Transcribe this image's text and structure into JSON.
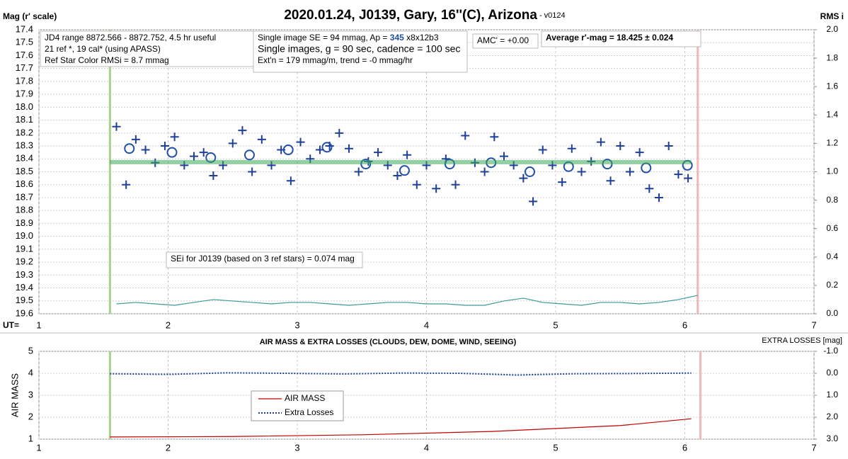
{
  "chart_data": [
    {
      "type": "scatter",
      "title": "2020.01.24, J0139, Gary, 16''(C), Arizona",
      "subtitle": " - v0124",
      "ylabel": "Mag (r' scale)",
      "y2label": "RMS i",
      "xlabel": "UT=",
      "xlim": [
        1,
        7
      ],
      "xticks": [
        1,
        2,
        3,
        4,
        5,
        6,
        7
      ],
      "ylim": [
        19.6,
        17.4
      ],
      "yticks": [
        17.4,
        17.5,
        17.6,
        17.7,
        17.8,
        17.9,
        {
          "value": 18,
          "label": "18.0"
        },
        18.1,
        18.2,
        18.3,
        18.4,
        18.5,
        18.6,
        18.7,
        18.8,
        18.9,
        {
          "value": 19,
          "label": "19.0"
        },
        19.1,
        19.2,
        19.3,
        19.4,
        19.5,
        19.6
      ],
      "y2lim": [
        0,
        2
      ],
      "y2ticks": [
        {
          "value": 0,
          "label": "0.0"
        },
        0.2,
        0.4,
        0.6,
        0.8,
        {
          "value": 1,
          "label": "1.0"
        },
        1.2,
        1.4,
        1.6,
        1.8,
        {
          "value": 2,
          "label": "2.0"
        }
      ],
      "grid": true,
      "vlines": [
        {
          "x": 1.55,
          "color": "#a9d18e"
        },
        {
          "x": 6.1,
          "color": "#f4b6b6"
        }
      ],
      "series": [
        {
          "marker": "plus",
          "color": "#1f3f99",
          "x": [
            1.6,
            1.675,
            1.75,
            1.825,
            1.9,
            1.975,
            2.05,
            2.125,
            2.2,
            2.275,
            2.35,
            2.425,
            2.5,
            2.575,
            2.65,
            2.725,
            2.8,
            2.875,
            2.95,
            3.025,
            3.1,
            3.175,
            3.25,
            3.325,
            3.4,
            3.475,
            3.55,
            3.625,
            3.7,
            3.775,
            3.85,
            3.925,
            4.0,
            4.075,
            4.15,
            4.225,
            4.3,
            4.375,
            4.45,
            4.525,
            4.6,
            4.675,
            4.75,
            4.825,
            4.9,
            4.975,
            5.05,
            5.125,
            5.2,
            5.275,
            5.35,
            5.425,
            5.5,
            5.575,
            5.65,
            5.725,
            5.8,
            5.875,
            5.95,
            6.025
          ],
          "values": [
            18.15,
            18.6,
            18.25,
            18.33,
            18.43,
            18.3,
            18.23,
            18.45,
            18.38,
            18.35,
            18.53,
            18.45,
            18.28,
            18.18,
            18.5,
            18.25,
            18.45,
            18.33,
            18.57,
            18.27,
            18.4,
            18.33,
            18.3,
            18.2,
            18.32,
            18.5,
            18.42,
            18.35,
            18.45,
            18.53,
            18.37,
            18.6,
            18.45,
            18.63,
            18.4,
            18.6,
            18.22,
            18.43,
            18.5,
            18.23,
            18.38,
            18.45,
            18.55,
            18.73,
            18.33,
            18.45,
            18.58,
            18.32,
            18.5,
            18.42,
            18.27,
            18.57,
            18.3,
            18.5,
            18.35,
            18.63,
            18.7,
            18.3,
            18.52,
            18.55
          ]
        },
        {
          "marker": "circle",
          "color": "#1f4fa8",
          "x": [
            1.7,
            2.03,
            2.33,
            2.63,
            2.93,
            3.23,
            3.53,
            3.83,
            4.18,
            4.5,
            4.8,
            5.1,
            5.4,
            5.7,
            6.02
          ],
          "values": [
            18.32,
            18.35,
            18.39,
            18.37,
            18.33,
            18.31,
            18.44,
            18.49,
            18.44,
            18.43,
            18.5,
            18.46,
            18.44,
            18.47,
            18.45
          ]
        },
        {
          "marker": "band",
          "color": "#3aa856",
          "x": [
            1.55,
            6.05
          ],
          "values": [
            18.425,
            18.425
          ]
        },
        {
          "marker": "plusline",
          "color": "#3d9a9a",
          "axis": "y2",
          "x": [
            1.6,
            1.75,
            1.9,
            2.05,
            2.2,
            2.35,
            2.5,
            2.65,
            2.8,
            2.95,
            3.1,
            3.25,
            3.4,
            3.55,
            3.7,
            3.85,
            4.0,
            4.15,
            4.3,
            4.45,
            4.6,
            4.75,
            4.9,
            5.05,
            5.2,
            5.35,
            5.5,
            5.65,
            5.8,
            5.95,
            6.1
          ],
          "values": [
            0.07,
            0.08,
            0.07,
            0.06,
            0.08,
            0.1,
            0.09,
            0.08,
            0.07,
            0.08,
            0.08,
            0.07,
            0.06,
            0.07,
            0.08,
            0.08,
            0.07,
            0.07,
            0.06,
            0.06,
            0.09,
            0.11,
            0.08,
            0.07,
            0.06,
            0.08,
            0.08,
            0.07,
            0.08,
            0.1,
            0.13
          ]
        }
      ],
      "annotations": [
        {
          "lines": [
            "JD4 range 8872.566 - 8872.752, 4.5 hr useful",
            "21 ref *, 19 cal* (using APASS)",
            "Ref Star Color RMSi = 8.7 mmag"
          ]
        },
        {
          "lines": [
            [
              "Single image SE = 94 mmag, Ap = ",
              "345",
              " x8x12b3"
            ],
            "Single images, g = 90 sec, cadence = 100 sec",
            "Ext'n = 179 mmag/m, trend = -0 mmag/hr"
          ]
        },
        {
          "lines": [
            "AMC' = +0.00"
          ]
        },
        {
          "lines": [
            "Average r'-mag =  18.425 ± 0.024"
          ]
        },
        {
          "lines": [
            "SEi for J0139 (based on 3 ref stars) = 0.074 mag"
          ]
        }
      ]
    },
    {
      "type": "line",
      "title": "AIR MASS & EXTRA LOSSES (CLOUDS, DEW, DOME, WIND, SEEING)",
      "ylabel": "AIR MASS",
      "y2label": "EXTRA LOSSES [mag]",
      "xlim": [
        1,
        7
      ],
      "xticks": [
        1,
        2,
        3,
        4,
        5,
        6,
        7
      ],
      "ylim": [
        1,
        5
      ],
      "yticks": [
        1,
        2,
        3,
        4,
        5
      ],
      "y2lim": [
        3,
        -1
      ],
      "y2ticks": [
        {
          "value": -1,
          "label": "-1.0"
        },
        {
          "value": 0,
          "label": "0.0"
        },
        {
          "value": 1,
          "label": "1.0"
        },
        {
          "value": 2,
          "label": "2.0"
        },
        {
          "value": 3,
          "label": "3.0"
        }
      ],
      "grid": true,
      "vlines": [
        {
          "x": 1.55,
          "color": "#a9d18e"
        },
        {
          "x": 6.12,
          "color": "#f4b6b6"
        }
      ],
      "series": [
        {
          "name": "AIR MASS",
          "marker": "line",
          "color": "#c00000",
          "x": [
            1.55,
            2.5,
            3.5,
            4.5,
            5.5,
            6.05
          ],
          "values": [
            1.1,
            1.12,
            1.2,
            1.35,
            1.62,
            1.93
          ]
        },
        {
          "name": "Extra Losses",
          "marker": "dotted",
          "color": "#1f3f99",
          "axis": "y2",
          "x": [
            1.55,
            2.0,
            2.45,
            2.9,
            3.35,
            3.8,
            4.25,
            4.7,
            5.15,
            5.6,
            6.05
          ],
          "values": [
            0.02,
            0.05,
            -0.02,
            0,
            0.03,
            -0.01,
            0,
            0.08,
            0.02,
            0.01,
            -0.01
          ]
        }
      ]
    }
  ]
}
